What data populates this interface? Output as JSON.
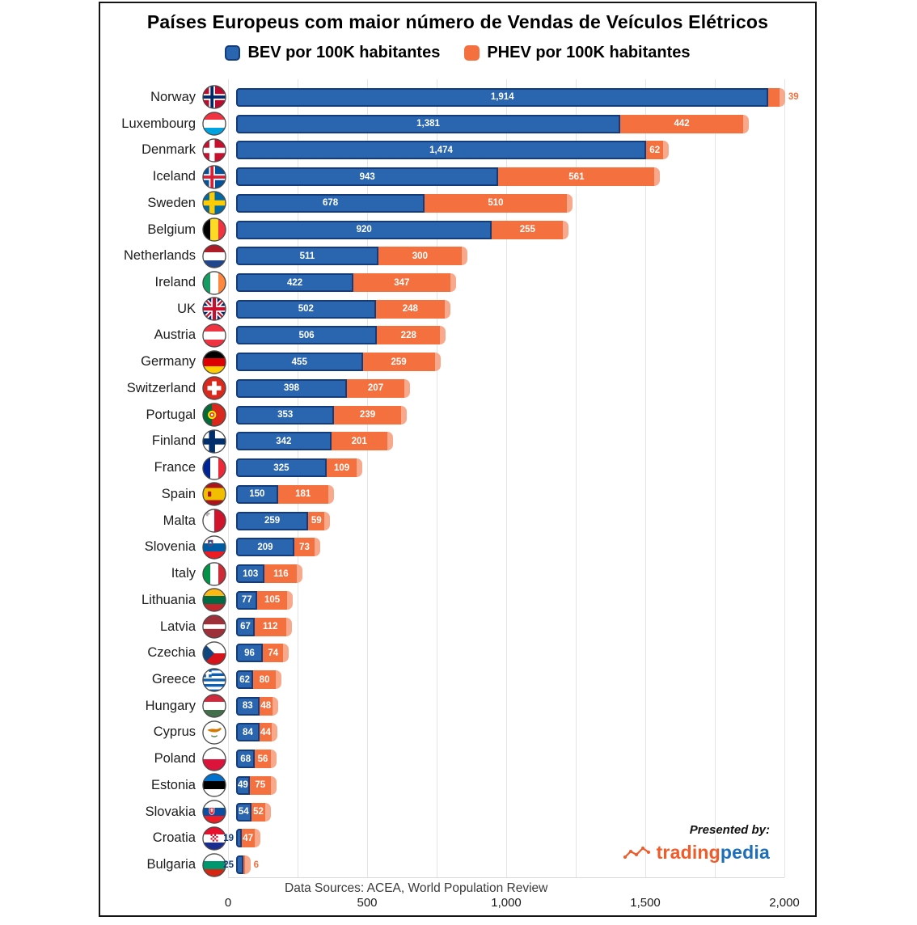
{
  "chart_data": {
    "type": "bar",
    "orientation": "horizontal",
    "stacked": true,
    "title": "Países Europeus com maior número de Vendas de Veículos Elétricos",
    "legend_position": "top",
    "grid": true,
    "grid_step": 250,
    "xlim": [
      0,
      2000
    ],
    "x_ticks": [
      0,
      500,
      1000,
      1500,
      2000
    ],
    "series": [
      {
        "name": "BEV por 100K habitantes",
        "key": "bev",
        "color": "#2a65b0"
      },
      {
        "name": "PHEV por 100K habitantes",
        "key": "phev",
        "color": "#f4713f"
      }
    ],
    "colors": {
      "bev": "#2a65b0",
      "bev_border": "#143c7b",
      "phev": "#f4713f",
      "phev_cap": "#f9a98b"
    },
    "countries": [
      {
        "name": "Norway",
        "flag": "norway",
        "bev": 1914,
        "phev": 39
      },
      {
        "name": "Luxembourg",
        "flag": "luxembourg",
        "bev": 1381,
        "phev": 442
      },
      {
        "name": "Denmark",
        "flag": "denmark",
        "bev": 1474,
        "phev": 62
      },
      {
        "name": "Iceland",
        "flag": "iceland",
        "bev": 943,
        "phev": 561
      },
      {
        "name": "Sweden",
        "flag": "sweden",
        "bev": 678,
        "phev": 510
      },
      {
        "name": "Belgium",
        "flag": "belgium",
        "bev": 920,
        "phev": 255
      },
      {
        "name": "Netherlands",
        "flag": "netherlands",
        "bev": 511,
        "phev": 300
      },
      {
        "name": "Ireland",
        "flag": "ireland",
        "bev": 422,
        "phev": 347
      },
      {
        "name": "UK",
        "flag": "uk",
        "bev": 502,
        "phev": 248
      },
      {
        "name": "Austria",
        "flag": "austria",
        "bev": 506,
        "phev": 228
      },
      {
        "name": "Germany",
        "flag": "germany",
        "bev": 455,
        "phev": 259
      },
      {
        "name": "Switzerland",
        "flag": "switzerland",
        "bev": 398,
        "phev": 207
      },
      {
        "name": "Portugal",
        "flag": "portugal",
        "bev": 353,
        "phev": 239
      },
      {
        "name": "Finland",
        "flag": "finland",
        "bev": 342,
        "phev": 201
      },
      {
        "name": "France",
        "flag": "france",
        "bev": 325,
        "phev": 109
      },
      {
        "name": "Spain",
        "flag": "spain",
        "bev": 150,
        "phev": 181
      },
      {
        "name": "Malta",
        "flag": "malta",
        "bev": 259,
        "phev": 59
      },
      {
        "name": "Slovenia",
        "flag": "slovenia",
        "bev": 209,
        "phev": 73
      },
      {
        "name": "Italy",
        "flag": "italy",
        "bev": 103,
        "phev": 116
      },
      {
        "name": "Lithuania",
        "flag": "lithuania",
        "bev": 77,
        "phev": 105
      },
      {
        "name": "Latvia",
        "flag": "latvia",
        "bev": 67,
        "phev": 112
      },
      {
        "name": "Czechia",
        "flag": "czechia",
        "bev": 96,
        "phev": 74
      },
      {
        "name": "Greece",
        "flag": "greece",
        "bev": 62,
        "phev": 80
      },
      {
        "name": "Hungary",
        "flag": "hungary",
        "bev": 83,
        "phev": 48
      },
      {
        "name": "Cyprus",
        "flag": "cyprus",
        "bev": 84,
        "phev": 44
      },
      {
        "name": "Poland",
        "flag": "poland",
        "bev": 68,
        "phev": 56
      },
      {
        "name": "Estonia",
        "flag": "estonia",
        "bev": 49,
        "phev": 75
      },
      {
        "name": "Slovakia",
        "flag": "slovakia",
        "bev": 54,
        "phev": 52
      },
      {
        "name": "Croatia",
        "flag": "croatia",
        "bev": 19,
        "phev": 47
      },
      {
        "name": "Bulgaria",
        "flag": "bulgaria",
        "bev": 25,
        "phev": 6
      }
    ]
  },
  "footer": {
    "data_sources": "Data Sources: ACEA, World Population Review",
    "presented_by": "Presented by:",
    "logo_text_1": "trading",
    "logo_text_2": "pedia"
  }
}
